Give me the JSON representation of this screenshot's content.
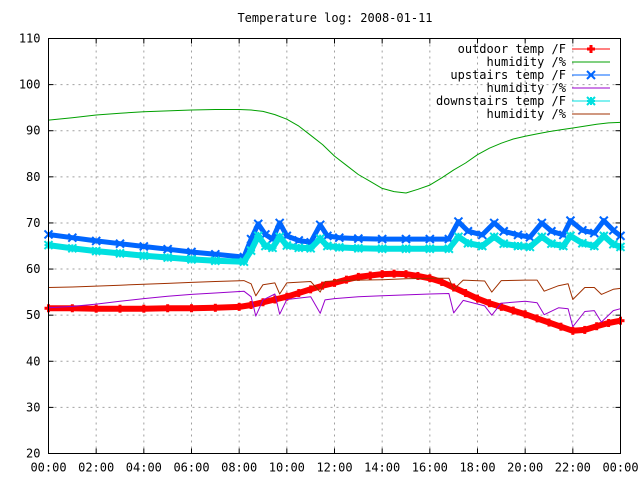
{
  "chart_data": {
    "type": "line",
    "title": "Temperature log: 2008-01-11",
    "xlabel": "",
    "ylabel": "",
    "xlim": [
      0,
      24
    ],
    "ylim": [
      20,
      110
    ],
    "x_ticks": [
      "00:00",
      "02:00",
      "04:00",
      "06:00",
      "08:00",
      "10:00",
      "12:00",
      "14:00",
      "16:00",
      "18:00",
      "20:00",
      "22:00",
      "00:00"
    ],
    "y_ticks": [
      "20",
      "30",
      "40",
      "50",
      "60",
      "70",
      "80",
      "90",
      "100",
      "110"
    ],
    "grid": true,
    "legend_position": "top-right",
    "series": [
      {
        "name": "outdoor temp /F",
        "color": "#ff0000",
        "marker": "plus",
        "x": [
          0,
          1,
          2,
          3,
          4,
          5,
          6,
          7,
          8,
          8.5,
          9,
          9.5,
          10,
          10.5,
          11,
          11.5,
          12,
          12.5,
          13,
          13.5,
          14,
          14.5,
          15,
          15.5,
          16,
          16.5,
          17,
          17.5,
          18,
          18.5,
          19,
          19.5,
          20,
          20.5,
          21,
          21.5,
          22,
          22.5,
          23,
          23.5,
          24
        ],
        "y": [
          51.5,
          51.5,
          51.4,
          51.4,
          51.4,
          51.5,
          51.5,
          51.6,
          51.8,
          52.2,
          52.8,
          53.4,
          54.0,
          54.8,
          55.6,
          56.4,
          57.0,
          57.7,
          58.3,
          58.6,
          58.9,
          59.0,
          58.9,
          58.5,
          58.0,
          57.2,
          56.0,
          54.8,
          53.6,
          52.6,
          51.8,
          51.0,
          50.2,
          49.3,
          48.4,
          47.5,
          46.6,
          46.8,
          47.6,
          48.3,
          48.8
        ]
      },
      {
        "name": "humidity /%",
        "color": "#00a000",
        "marker": "none",
        "x": [
          0,
          1,
          2,
          3,
          4,
          5,
          6,
          7,
          8,
          8.5,
          9,
          9.5,
          10,
          10.5,
          11,
          11.5,
          12,
          12.5,
          13,
          13.5,
          14,
          14.5,
          15,
          15.5,
          16,
          16.5,
          17,
          17.5,
          18,
          18.5,
          19,
          19.5,
          20,
          20.5,
          21,
          21.5,
          22,
          22.5,
          23,
          23.5,
          24
        ],
        "y": [
          92.3,
          92.8,
          93.4,
          93.8,
          94.1,
          94.3,
          94.5,
          94.6,
          94.6,
          94.5,
          94.2,
          93.5,
          92.5,
          91.0,
          89.0,
          87.0,
          84.5,
          82.5,
          80.5,
          79.0,
          77.5,
          76.8,
          76.5,
          77.3,
          78.2,
          79.8,
          81.5,
          83.0,
          84.8,
          86.2,
          87.3,
          88.2,
          88.8,
          89.3,
          89.8,
          90.2,
          90.6,
          91.0,
          91.4,
          91.7,
          91.8
        ]
      },
      {
        "name": "upstairs temp /F",
        "color": "#0066ff",
        "marker": "cross",
        "x": [
          0,
          1,
          2,
          3,
          4,
          5,
          6,
          7,
          8.2,
          8.5,
          8.8,
          9.1,
          9.4,
          9.7,
          10.0,
          10.5,
          11.0,
          11.4,
          11.7,
          12.2,
          13,
          14,
          15,
          16,
          16.8,
          17.2,
          17.6,
          18.2,
          18.7,
          19.1,
          19.7,
          20.2,
          20.7,
          21.1,
          21.6,
          21.9,
          22.4,
          22.9,
          23.3,
          23.7,
          24
        ],
        "y": [
          67.5,
          66.8,
          66.1,
          65.5,
          64.9,
          64.3,
          63.7,
          63.2,
          62.6,
          66.5,
          69.8,
          67.5,
          66.5,
          70.0,
          67.2,
          66.2,
          65.8,
          69.6,
          67.2,
          66.8,
          66.6,
          66.5,
          66.5,
          66.5,
          66.5,
          70.3,
          68.2,
          67.4,
          70.0,
          68.2,
          67.4,
          66.9,
          70.0,
          68.2,
          67.4,
          70.5,
          68.4,
          67.8,
          70.5,
          68.4,
          67.2
        ]
      },
      {
        "name": "humidity /%",
        "color": "#9900cc",
        "marker": "none",
        "x": [
          0,
          1,
          2,
          3,
          4,
          5,
          6,
          7,
          8.2,
          8.5,
          8.7,
          9.0,
          9.5,
          9.7,
          10.0,
          11.0,
          11.4,
          11.6,
          12.0,
          13,
          14,
          15,
          16,
          16.8,
          17.0,
          17.4,
          18.3,
          18.6,
          19.0,
          20.0,
          20.5,
          20.8,
          21.4,
          21.8,
          22.0,
          22.5,
          22.9,
          23.2,
          23.7,
          24
        ],
        "y": [
          51.6,
          51.9,
          52.4,
          53.0,
          53.6,
          54.1,
          54.5,
          54.8,
          55.2,
          54.0,
          49.8,
          53.3,
          54.6,
          50.2,
          53.4,
          54.0,
          50.4,
          53.3,
          53.6,
          54.0,
          54.2,
          54.4,
          54.6,
          54.7,
          50.5,
          53.2,
          52.0,
          50.0,
          52.6,
          53.0,
          52.7,
          50.1,
          51.6,
          51.4,
          47.5,
          50.8,
          51.0,
          48.5,
          51.0,
          51.4
        ]
      },
      {
        "name": "downstairs temp /F",
        "color": "#00e0e0",
        "marker": "star",
        "x": [
          0,
          1,
          2,
          3,
          4,
          5,
          6,
          7,
          8.2,
          8.5,
          8.8,
          9.1,
          9.4,
          9.7,
          10.0,
          10.5,
          11.0,
          11.4,
          11.7,
          12.2,
          13,
          14,
          15,
          16,
          16.8,
          17.2,
          17.6,
          18.2,
          18.7,
          19.1,
          19.7,
          20.2,
          20.7,
          21.1,
          21.6,
          21.9,
          22.4,
          22.9,
          23.3,
          23.7,
          24
        ],
        "y": [
          65.2,
          64.5,
          63.9,
          63.4,
          62.9,
          62.5,
          62.1,
          61.8,
          61.6,
          64.0,
          67.2,
          65.0,
          64.6,
          67.0,
          65.1,
          64.6,
          64.5,
          66.6,
          65.0,
          64.7,
          64.5,
          64.4,
          64.4,
          64.4,
          64.4,
          67.0,
          65.6,
          65.0,
          67.0,
          65.5,
          65.0,
          64.8,
          67.0,
          65.5,
          65.0,
          67.2,
          65.6,
          65.0,
          67.2,
          65.4,
          64.8
        ]
      },
      {
        "name": "humidity /%",
        "color": "#a03000",
        "marker": "none",
        "x": [
          0,
          1,
          2,
          3,
          4,
          5,
          6,
          7,
          8.2,
          8.5,
          8.7,
          9.0,
          9.5,
          9.7,
          10.0,
          11.0,
          11.4,
          11.6,
          12.0,
          13,
          14,
          15,
          16,
          16.8,
          17.0,
          17.4,
          18.3,
          18.6,
          19.0,
          20.0,
          20.5,
          20.8,
          21.4,
          21.8,
          22.0,
          22.5,
          22.9,
          23.2,
          23.7,
          24
        ],
        "y": [
          56.0,
          56.1,
          56.3,
          56.5,
          56.7,
          56.9,
          57.1,
          57.3,
          57.5,
          56.8,
          54.2,
          56.6,
          57.0,
          54.6,
          57.0,
          57.3,
          55.0,
          57.3,
          57.4,
          57.6,
          57.7,
          57.9,
          58.0,
          58.0,
          55.6,
          57.6,
          57.4,
          55.0,
          57.5,
          57.6,
          57.6,
          55.2,
          56.4,
          56.8,
          53.4,
          56.0,
          56.0,
          54.5,
          55.6,
          55.8
        ]
      }
    ]
  }
}
